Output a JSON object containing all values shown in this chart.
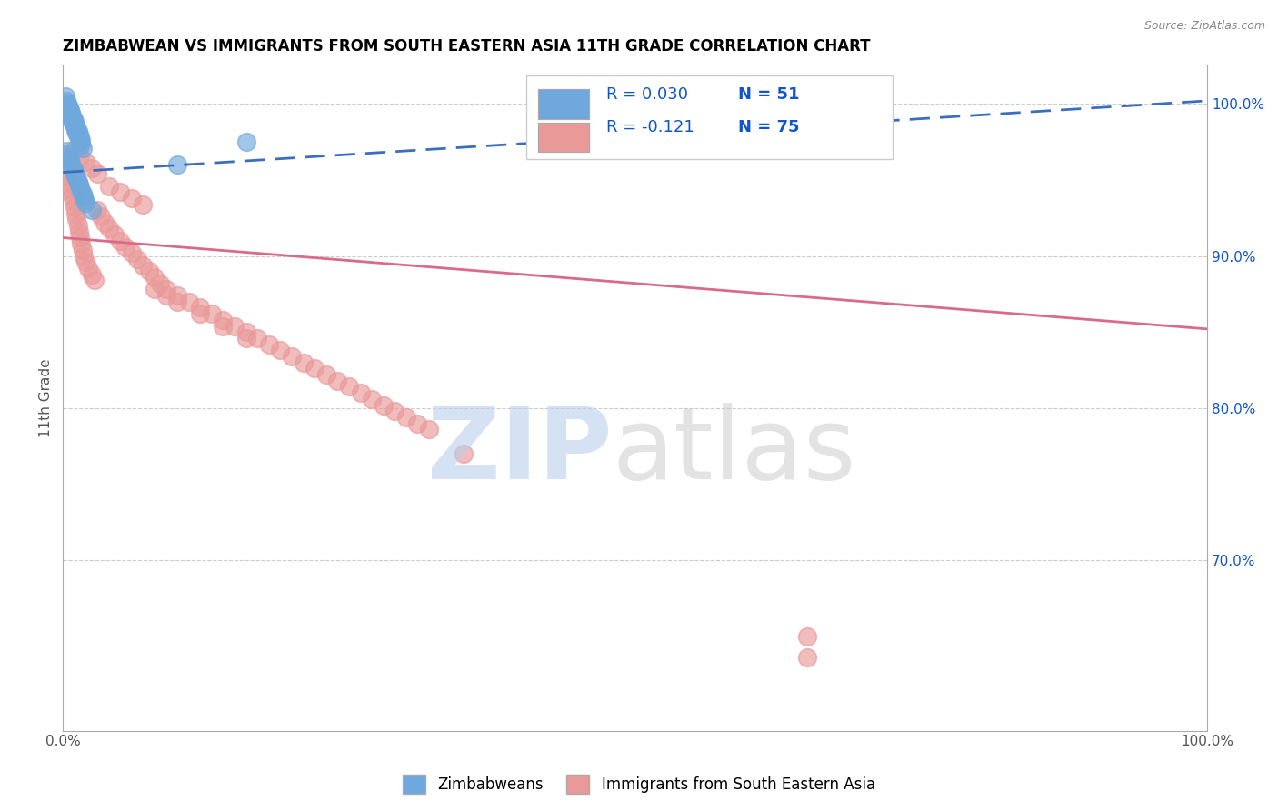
{
  "title": "ZIMBABWEAN VS IMMIGRANTS FROM SOUTH EASTERN ASIA 11TH GRADE CORRELATION CHART",
  "source_text": "Source: ZipAtlas.com",
  "ylabel": "11th Grade",
  "xmin": 0.0,
  "xmax": 1.0,
  "ymin": 0.588,
  "ymax": 1.025,
  "right_yticks": [
    1.0,
    0.9,
    0.8,
    0.7
  ],
  "right_yticklabels": [
    "100.0%",
    "90.0%",
    "80.0%",
    "70.0%"
  ],
  "blue_R": 0.03,
  "blue_N": 51,
  "pink_R": -0.121,
  "pink_N": 75,
  "blue_color": "#6fa8dc",
  "pink_color": "#ea9999",
  "blue_line_color": "#3a6fbe",
  "pink_line_color": "#d96a8a",
  "blue_line_start_y": 0.955,
  "blue_line_end_y": 1.002,
  "pink_line_start_y": 0.912,
  "pink_line_end_y": 0.852,
  "watermark_zip_color": "#b8d0ed",
  "watermark_atlas_color": "#c8c8c8",
  "legend_color": "#1155cc",
  "grid_color": "#cccccc",
  "blue_scatter_x": [
    0.002,
    0.003,
    0.003,
    0.004,
    0.004,
    0.005,
    0.005,
    0.006,
    0.006,
    0.007,
    0.007,
    0.008,
    0.008,
    0.009,
    0.009,
    0.01,
    0.01,
    0.011,
    0.011,
    0.012,
    0.012,
    0.013,
    0.013,
    0.014,
    0.014,
    0.015,
    0.015,
    0.016,
    0.016,
    0.017,
    0.003,
    0.004,
    0.005,
    0.006,
    0.007,
    0.008,
    0.009,
    0.01,
    0.011,
    0.012,
    0.013,
    0.014,
    0.015,
    0.016,
    0.017,
    0.018,
    0.019,
    0.02,
    0.025,
    0.1,
    0.16
  ],
  "blue_scatter_y": [
    1.005,
    0.999,
    1.002,
    0.997,
    1.0,
    0.995,
    0.998,
    0.993,
    0.996,
    0.991,
    0.994,
    0.989,
    0.992,
    0.987,
    0.99,
    0.985,
    0.988,
    0.983,
    0.986,
    0.981,
    0.984,
    0.979,
    0.982,
    0.977,
    0.98,
    0.975,
    0.978,
    0.973,
    0.976,
    0.971,
    0.969,
    0.967,
    0.965,
    0.963,
    0.961,
    0.959,
    0.957,
    0.955,
    0.953,
    0.951,
    0.949,
    0.947,
    0.945,
    0.943,
    0.941,
    0.939,
    0.937,
    0.935,
    0.93,
    0.96,
    0.975
  ],
  "pink_scatter_x": [
    0.003,
    0.004,
    0.005,
    0.006,
    0.007,
    0.008,
    0.009,
    0.01,
    0.011,
    0.012,
    0.013,
    0.014,
    0.015,
    0.016,
    0.017,
    0.018,
    0.02,
    0.022,
    0.025,
    0.028,
    0.03,
    0.033,
    0.036,
    0.04,
    0.045,
    0.05,
    0.055,
    0.06,
    0.065,
    0.07,
    0.075,
    0.08,
    0.085,
    0.09,
    0.1,
    0.11,
    0.12,
    0.13,
    0.14,
    0.15,
    0.16,
    0.17,
    0.18,
    0.19,
    0.2,
    0.21,
    0.22,
    0.23,
    0.24,
    0.25,
    0.26,
    0.27,
    0.28,
    0.29,
    0.3,
    0.31,
    0.32,
    0.01,
    0.015,
    0.02,
    0.025,
    0.03,
    0.04,
    0.05,
    0.06,
    0.07,
    0.08,
    0.09,
    0.1,
    0.12,
    0.14,
    0.16,
    0.35,
    0.65,
    0.65
  ],
  "pink_scatter_y": [
    0.96,
    0.956,
    0.952,
    0.948,
    0.944,
    0.94,
    0.936,
    0.932,
    0.928,
    0.924,
    0.92,
    0.916,
    0.912,
    0.908,
    0.904,
    0.9,
    0.896,
    0.892,
    0.888,
    0.884,
    0.93,
    0.926,
    0.922,
    0.918,
    0.914,
    0.91,
    0.906,
    0.902,
    0.898,
    0.894,
    0.89,
    0.886,
    0.882,
    0.878,
    0.874,
    0.87,
    0.866,
    0.862,
    0.858,
    0.854,
    0.85,
    0.846,
    0.842,
    0.838,
    0.834,
    0.83,
    0.826,
    0.822,
    0.818,
    0.814,
    0.81,
    0.806,
    0.802,
    0.798,
    0.794,
    0.79,
    0.786,
    0.97,
    0.966,
    0.962,
    0.958,
    0.954,
    0.946,
    0.942,
    0.938,
    0.934,
    0.878,
    0.874,
    0.87,
    0.862,
    0.854,
    0.846,
    0.77,
    0.65,
    0.636
  ]
}
